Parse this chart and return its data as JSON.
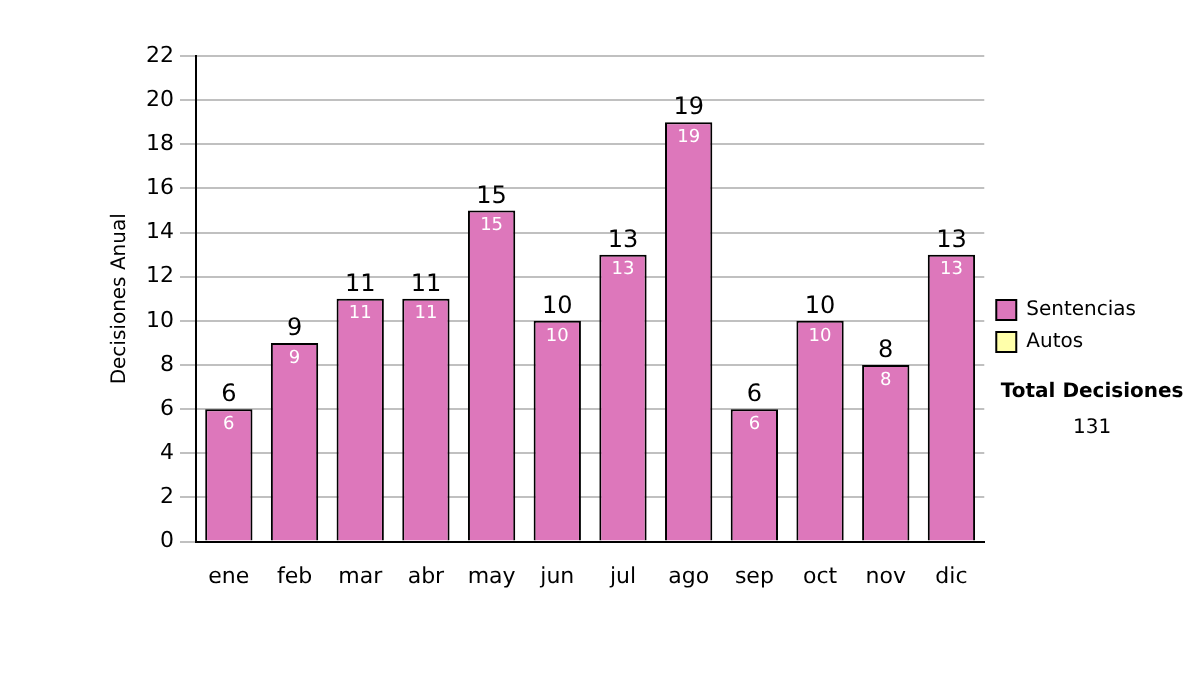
{
  "chart_data": {
    "type": "bar",
    "stacked": true,
    "ylabel": "Decisiones Anual",
    "categories": [
      "ene",
      "feb",
      "mar",
      "abr",
      "may",
      "jun",
      "jul",
      "ago",
      "sep",
      "oct",
      "nov",
      "dic"
    ],
    "series": [
      {
        "name": "Sentencias",
        "color": "#dd77bb",
        "values": [
          6,
          9,
          11,
          11,
          15,
          10,
          13,
          19,
          6,
          10,
          8,
          13
        ],
        "value_labels": [
          "6",
          "9",
          "11",
          "11",
          "15",
          "10",
          "13",
          "19",
          "6",
          "10",
          "8",
          "13"
        ]
      },
      {
        "name": "Autos",
        "color": "#ffffaa",
        "values": [
          0,
          0,
          0,
          0,
          0,
          0,
          0,
          0,
          0,
          0,
          0,
          0
        ]
      }
    ],
    "totals": [
      "6",
      "9",
      "11",
      "11",
      "15",
      "10",
      "13",
      "19",
      "6",
      "10",
      "8",
      "13"
    ],
    "ylim": [
      0,
      22
    ],
    "yticks": [
      0,
      2,
      4,
      6,
      8,
      10,
      12,
      14,
      16,
      18,
      20,
      22
    ],
    "grid": "y",
    "legend": "right",
    "annotations": [
      "Total Decisiones",
      "131"
    ]
  }
}
